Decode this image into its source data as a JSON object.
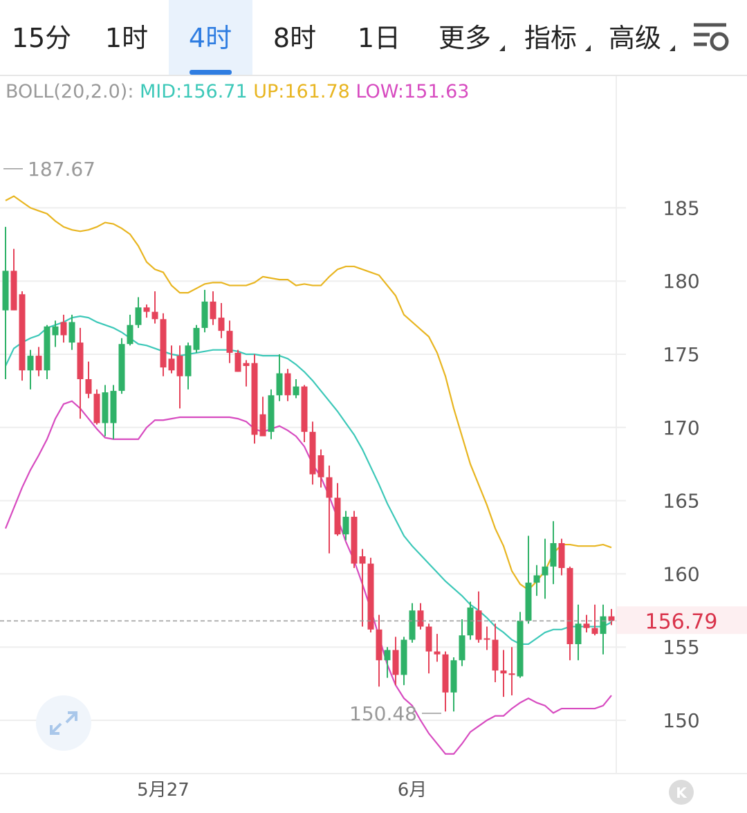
{
  "tabs": [
    "15分",
    "1时",
    "4时",
    "8时",
    "1日",
    "更多",
    "指标",
    "高级"
  ],
  "chart_data": {
    "type": "candlestick",
    "indicator": "BOLL(20,2.0):",
    "categories": [
      null,
      null,
      null,
      null,
      null,
      null,
      null,
      null,
      null,
      null,
      null,
      null,
      null,
      null,
      null,
      null,
      null,
      null,
      null,
      "5月27",
      null,
      null,
      null,
      null,
      null,
      null,
      null,
      null,
      null,
      null,
      null,
      null,
      null,
      null,
      null,
      null,
      null,
      null,
      null,
      null,
      null,
      null,
      null,
      null,
      null,
      null,
      null,
      null,
      null,
      "6月",
      null,
      null,
      null,
      null,
      null,
      null,
      null,
      null,
      null,
      null,
      null,
      null,
      null,
      null,
      null,
      null,
      null,
      null,
      null,
      null,
      null,
      null,
      null,
      null
    ],
    "open": [
      178.0,
      180.7,
      179.1,
      173.9,
      174.9,
      173.9,
      176.3,
      177.2,
      175.8,
      175.8,
      173.3,
      172.3,
      170.3,
      170.3,
      172.5,
      175.7,
      177.0,
      178.2,
      177.9,
      177.4,
      174.7,
      174.9,
      173.5,
      175.3,
      176.8,
      178.6,
      177.5,
      176.6,
      175.1,
      174.4,
      174.4,
      170.9,
      169.7,
      172.2,
      173.7,
      172.2,
      172.8,
      169.7,
      168.1,
      166.6,
      165.2,
      162.7,
      163.9,
      161.2,
      160.7,
      156.2,
      154.1,
      154.8,
      153.1,
      155.5,
      157.5,
      156.4,
      154.7,
      154.5,
      151.9,
      154.1,
      155.8,
      157.5,
      155.6,
      155.5,
      153.4,
      153.2,
      153.0,
      156.8,
      159.4,
      159.9,
      160.5,
      162.1,
      160.4,
      155.2,
      156.6,
      156.3,
      155.9,
      157.1
    ],
    "high": [
      183.7,
      182.2,
      179.3,
      175.3,
      175.5,
      177.0,
      177.3,
      177.7,
      177.7,
      176.8,
      174.5,
      172.6,
      172.9,
      172.9,
      176.1,
      177.7,
      178.9,
      178.4,
      179.3,
      177.8,
      175.6,
      175.6,
      175.8,
      177.0,
      179.4,
      179.3,
      178.5,
      177.3,
      175.3,
      174.6,
      175.0,
      172.1,
      172.6,
      175.0,
      174.0,
      173.3,
      172.9,
      170.4,
      168.5,
      167.4,
      166.2,
      164.3,
      164.3,
      161.7,
      161.1,
      157.2,
      155.0,
      155.7,
      155.7,
      158.0,
      158.0,
      156.6,
      155.9,
      154.7,
      154.3,
      156.9,
      158.1,
      158.8,
      156.4,
      156.6,
      154.8,
      155.0,
      157.4,
      162.6,
      160.6,
      162.4,
      163.6,
      162.4,
      160.5,
      157.9,
      157.2,
      157.9,
      157.9,
      157.6
    ],
    "low": [
      173.3,
      178.0,
      173.2,
      172.6,
      173.5,
      173.3,
      175.5,
      175.8,
      175.3,
      170.6,
      172.0,
      170.2,
      169.4,
      169.2,
      172.3,
      175.6,
      176.8,
      177.5,
      177.1,
      173.5,
      173.7,
      171.3,
      172.6,
      175.1,
      176.5,
      177.0,
      176.1,
      174.4,
      173.8,
      172.8,
      168.9,
      169.4,
      169.2,
      171.8,
      171.8,
      172.0,
      169.0,
      166.1,
      165.9,
      161.4,
      162.6,
      162.3,
      160.4,
      156.4,
      156.0,
      152.3,
      152.9,
      152.4,
      152.4,
      155.3,
      156.2,
      153.2,
      154.0,
      150.6,
      150.6,
      153.7,
      155.5,
      155.3,
      154.8,
      152.6,
      151.6,
      151.7,
      152.9,
      156.6,
      158.5,
      158.3,
      159.3,
      159.9,
      154.1,
      154.1,
      156.0,
      155.8,
      154.5,
      156.5
    ],
    "close": [
      180.7,
      178.0,
      173.9,
      174.9,
      173.9,
      176.9,
      176.9,
      176.3,
      177.2,
      173.3,
      172.3,
      170.3,
      172.4,
      172.5,
      175.7,
      177.0,
      178.2,
      177.9,
      177.4,
      174.1,
      173.9,
      173.5,
      175.6,
      176.8,
      178.6,
      177.4,
      176.6,
      175.1,
      173.8,
      174.2,
      169.5,
      169.4,
      172.2,
      173.7,
      172.2,
      172.8,
      169.7,
      166.8,
      166.6,
      165.2,
      162.7,
      163.9,
      160.7,
      160.7,
      156.2,
      154.1,
      154.8,
      153.1,
      155.5,
      157.5,
      156.4,
      154.7,
      154.5,
      151.9,
      154.1,
      155.8,
      157.7,
      155.5,
      155.5,
      153.4,
      153.2,
      153.1,
      156.8,
      159.4,
      159.9,
      160.5,
      162.1,
      160.4,
      155.2,
      156.6,
      156.3,
      155.9,
      157.1,
      156.79
    ],
    "up_color": "#2fb268",
    "down_color": "#e5435a",
    "series": [
      {
        "name": "MID:156.71",
        "color": "#3cc8b8",
        "values": [
          174.2,
          175.4,
          175.8,
          176.1,
          176.3,
          176.8,
          177.0,
          177.2,
          177.5,
          177.6,
          177.5,
          177.2,
          177.0,
          176.8,
          176.5,
          176.1,
          175.7,
          175.6,
          175.4,
          175.2,
          175.0,
          174.9,
          175.0,
          175.1,
          175.2,
          175.3,
          175.3,
          175.3,
          175.2,
          175.0,
          175.0,
          174.9,
          174.9,
          174.9,
          174.7,
          174.3,
          173.8,
          173.2,
          172.5,
          171.8,
          171.1,
          170.3,
          169.5,
          168.5,
          167.3,
          166.1,
          164.8,
          163.7,
          162.6,
          161.9,
          161.3,
          160.7,
          160.1,
          159.5,
          159.0,
          158.5,
          157.9,
          157.5,
          157.0,
          156.4,
          156.0,
          155.5,
          155.2,
          155.2,
          155.6,
          156.0,
          156.2,
          156.2,
          156.4,
          156.4,
          156.4,
          156.4,
          156.4,
          156.7
        ]
      },
      {
        "name": "UP:161.78",
        "color": "#e8b520",
        "values": [
          185.5,
          185.8,
          185.4,
          185.0,
          184.8,
          184.6,
          184.1,
          183.7,
          183.5,
          183.4,
          183.5,
          183.7,
          184.0,
          183.9,
          183.6,
          183.2,
          182.4,
          181.3,
          180.8,
          180.6,
          179.7,
          179.2,
          179.2,
          179.5,
          179.8,
          179.9,
          179.9,
          179.7,
          179.7,
          179.7,
          179.9,
          180.3,
          180.2,
          180.1,
          180.1,
          179.7,
          179.8,
          179.7,
          179.7,
          180.3,
          180.8,
          181.0,
          181.0,
          180.8,
          180.6,
          180.4,
          179.7,
          179.0,
          177.7,
          177.2,
          176.7,
          176.2,
          175.1,
          173.5,
          171.3,
          169.4,
          167.5,
          166.1,
          164.7,
          163.1,
          161.9,
          160.2,
          159.3,
          158.9,
          159.5,
          160.2,
          161.4,
          162.0,
          162.0,
          161.9,
          161.9,
          161.9,
          162.0,
          161.8
        ]
      },
      {
        "name": "LOW:151.63",
        "color": "#d74bc0",
        "values": [
          163.1,
          164.5,
          165.9,
          167.1,
          168.1,
          169.2,
          170.6,
          171.6,
          171.8,
          171.3,
          170.6,
          169.9,
          169.3,
          169.2,
          169.2,
          169.2,
          169.2,
          170.0,
          170.5,
          170.5,
          170.6,
          170.7,
          170.7,
          170.7,
          170.7,
          170.7,
          170.7,
          170.7,
          170.6,
          170.4,
          169.9,
          169.7,
          169.9,
          170.1,
          169.8,
          169.4,
          168.7,
          167.5,
          166.6,
          165.3,
          163.8,
          162.2,
          160.9,
          159.3,
          157.6,
          155.7,
          153.8,
          152.4,
          151.5,
          151.0,
          150.0,
          149.1,
          148.4,
          147.7,
          147.7,
          148.4,
          149.2,
          149.6,
          150.0,
          150.3,
          150.3,
          150.8,
          151.2,
          151.5,
          151.2,
          151.0,
          150.5,
          150.8,
          150.8,
          150.8,
          150.8,
          150.8,
          151.0,
          151.7
        ]
      }
    ],
    "ylim": [
      146.36,
      194.0
    ],
    "yticks": [
      150,
      155,
      160,
      165,
      170,
      175,
      180,
      185
    ],
    "grid": true,
    "high_mark": 187.67,
    "low_mark": 150.48
  }
}
